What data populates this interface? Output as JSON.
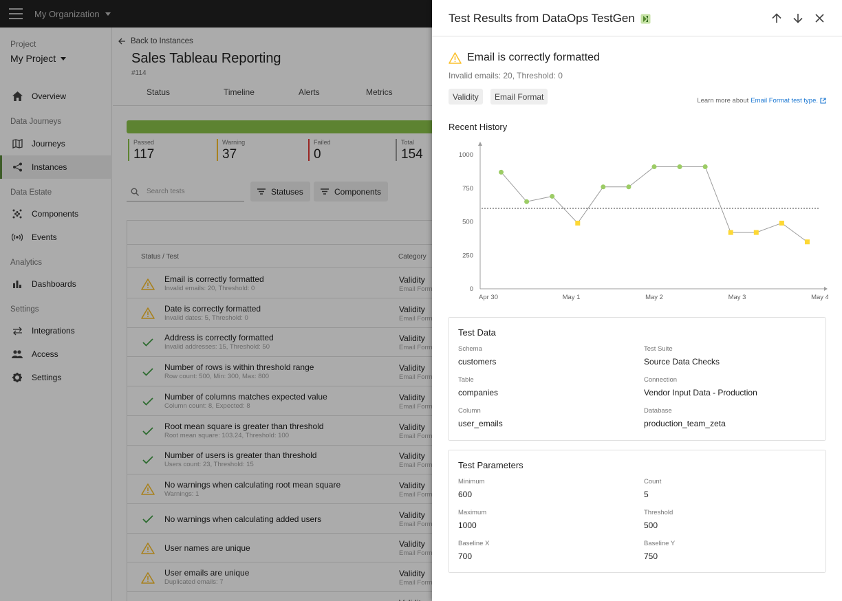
{
  "topbar": {
    "org": "My Organization"
  },
  "sidebar": {
    "project_label": "Project",
    "project_name": "My Project",
    "sections": [
      "Data Journeys",
      "Data Estate",
      "Analytics",
      "Settings"
    ],
    "items": [
      {
        "label": "Overview",
        "icon": "home-icon"
      },
      {
        "label": "Journeys",
        "icon": "map-icon"
      },
      {
        "label": "Instances",
        "icon": "share-icon"
      },
      {
        "label": "Components",
        "icon": "grid-dots-icon"
      },
      {
        "label": "Events",
        "icon": "broadcast-icon"
      },
      {
        "label": "Dashboards",
        "icon": "bar-chart-icon"
      },
      {
        "label": "Integrations",
        "icon": "swap-icon"
      },
      {
        "label": "Access",
        "icon": "people-icon"
      },
      {
        "label": "Settings",
        "icon": "gear-icon"
      }
    ]
  },
  "main": {
    "back": "Back to Instances",
    "title": "Sales Tableau Reporting",
    "subtitle": "#114",
    "tabs": [
      "Status",
      "Timeline",
      "Alerts",
      "Metrics"
    ],
    "stats": [
      {
        "label": "Passed",
        "value": "117",
        "color": "#8bc34a"
      },
      {
        "label": "Warning",
        "value": "37",
        "color": "#fbc02d"
      },
      {
        "label": "Failed",
        "value": "0",
        "color": "#e53935"
      },
      {
        "label": "Total",
        "value": "154",
        "color": "#9e9e9e"
      }
    ],
    "search_placeholder": "Search tests",
    "filters": [
      "Statuses",
      "Components"
    ],
    "columns": [
      "Status / Test",
      "Category"
    ],
    "rows": [
      {
        "status": "warning",
        "name": "Email is correctly formatted",
        "desc": "Invalid emails: 20, Threshold: 0",
        "category": "Validity",
        "sub": "Email Format"
      },
      {
        "status": "warning",
        "name": "Date is correctly formatted",
        "desc": "Invalid dates: 5, Threshold: 0",
        "category": "Validity",
        "sub": "Email Format"
      },
      {
        "status": "passed",
        "name": "Address is correctly formatted",
        "desc": "Invalid addresses: 15, Threshold: 50",
        "category": "Validity",
        "sub": "Email Format"
      },
      {
        "status": "passed",
        "name": "Number of rows is within threshold range",
        "desc": "Row count: 500, Min: 300, Max: 800",
        "category": "Validity",
        "sub": "Email Format"
      },
      {
        "status": "passed",
        "name": "Number of columns matches expected value",
        "desc": "Column count: 8, Expected: 8",
        "category": "Validity",
        "sub": "Email Format"
      },
      {
        "status": "passed",
        "name": "Root mean square is greater than threshold",
        "desc": "Root mean square: 103.24, Threshold: 100",
        "category": "Validity",
        "sub": "Email Format"
      },
      {
        "status": "passed",
        "name": "Number of users is greater than threshold",
        "desc": "Users count: 23, Threshold: 15",
        "category": "Validity",
        "sub": "Email Format"
      },
      {
        "status": "warning",
        "name": "No warnings when calculating root mean square",
        "desc": "Warnings: 1",
        "category": "Validity",
        "sub": "Email Format"
      },
      {
        "status": "passed",
        "name": "No warnings when calculating added users",
        "desc": "",
        "category": "Validity",
        "sub": "Email Format"
      },
      {
        "status": "warning",
        "name": "User names are unique",
        "desc": "",
        "category": "Validity",
        "sub": "Email Format"
      },
      {
        "status": "warning",
        "name": "User emails are unique",
        "desc": "Duplicated emails: 7",
        "category": "Validity",
        "sub": "Email Format"
      },
      {
        "status": "passed",
        "name": "",
        "desc": "",
        "category": "Validity",
        "sub": ""
      }
    ]
  },
  "panel": {
    "title": "Test Results from DataOps TestGen",
    "test_title": "Email is correctly formatted",
    "test_sub": "Invalid emails: 20, Threshold: 0",
    "chips": [
      "Validity",
      "Email Format"
    ],
    "learn_prefix": "Learn more about",
    "learn_link": "Email Format test type.",
    "history_title": "Recent History",
    "test_data_title": "Test Data",
    "test_data": [
      {
        "label": "Schema",
        "value": "customers"
      },
      {
        "label": "Test Suite",
        "value": "Source Data Checks"
      },
      {
        "label": "Table",
        "value": "companies"
      },
      {
        "label": "Connection",
        "value": "Vendor Input Data - Production"
      },
      {
        "label": "Column",
        "value": "user_emails"
      },
      {
        "label": "Database",
        "value": "production_team_zeta"
      }
    ],
    "test_params_title": "Test Parameters",
    "test_params": [
      {
        "label": "Minimum",
        "value": "600"
      },
      {
        "label": "Count",
        "value": "5"
      },
      {
        "label": "Maximum",
        "value": "1000"
      },
      {
        "label": "Threshold",
        "value": "500"
      },
      {
        "label": "Baseline X",
        "value": "700"
      },
      {
        "label": "Baseline Y",
        "value": "750"
      }
    ]
  },
  "chart_data": {
    "type": "line",
    "title": "",
    "xlabel": "",
    "ylabel": "",
    "x_ticks": [
      "Apr 30",
      "May 1",
      "May 2",
      "May 3",
      "May 4"
    ],
    "y_ticks": [
      0,
      250,
      500,
      750,
      1000
    ],
    "ylim": [
      0,
      1000
    ],
    "xlim": [
      0,
      13
    ],
    "threshold": 600,
    "x": [
      0,
      1,
      2,
      3,
      4,
      5,
      6,
      7,
      8,
      9,
      10,
      11,
      12
    ],
    "values": [
      870,
      650,
      690,
      490,
      760,
      760,
      910,
      910,
      910,
      420,
      420,
      490,
      350
    ],
    "status": [
      "passed",
      "passed",
      "passed",
      "warning",
      "passed",
      "passed",
      "passed",
      "passed",
      "passed",
      "warning",
      "warning",
      "warning",
      "warning"
    ],
    "colors": {
      "passed": "#9ccc65",
      "warning": "#fdd835"
    }
  }
}
